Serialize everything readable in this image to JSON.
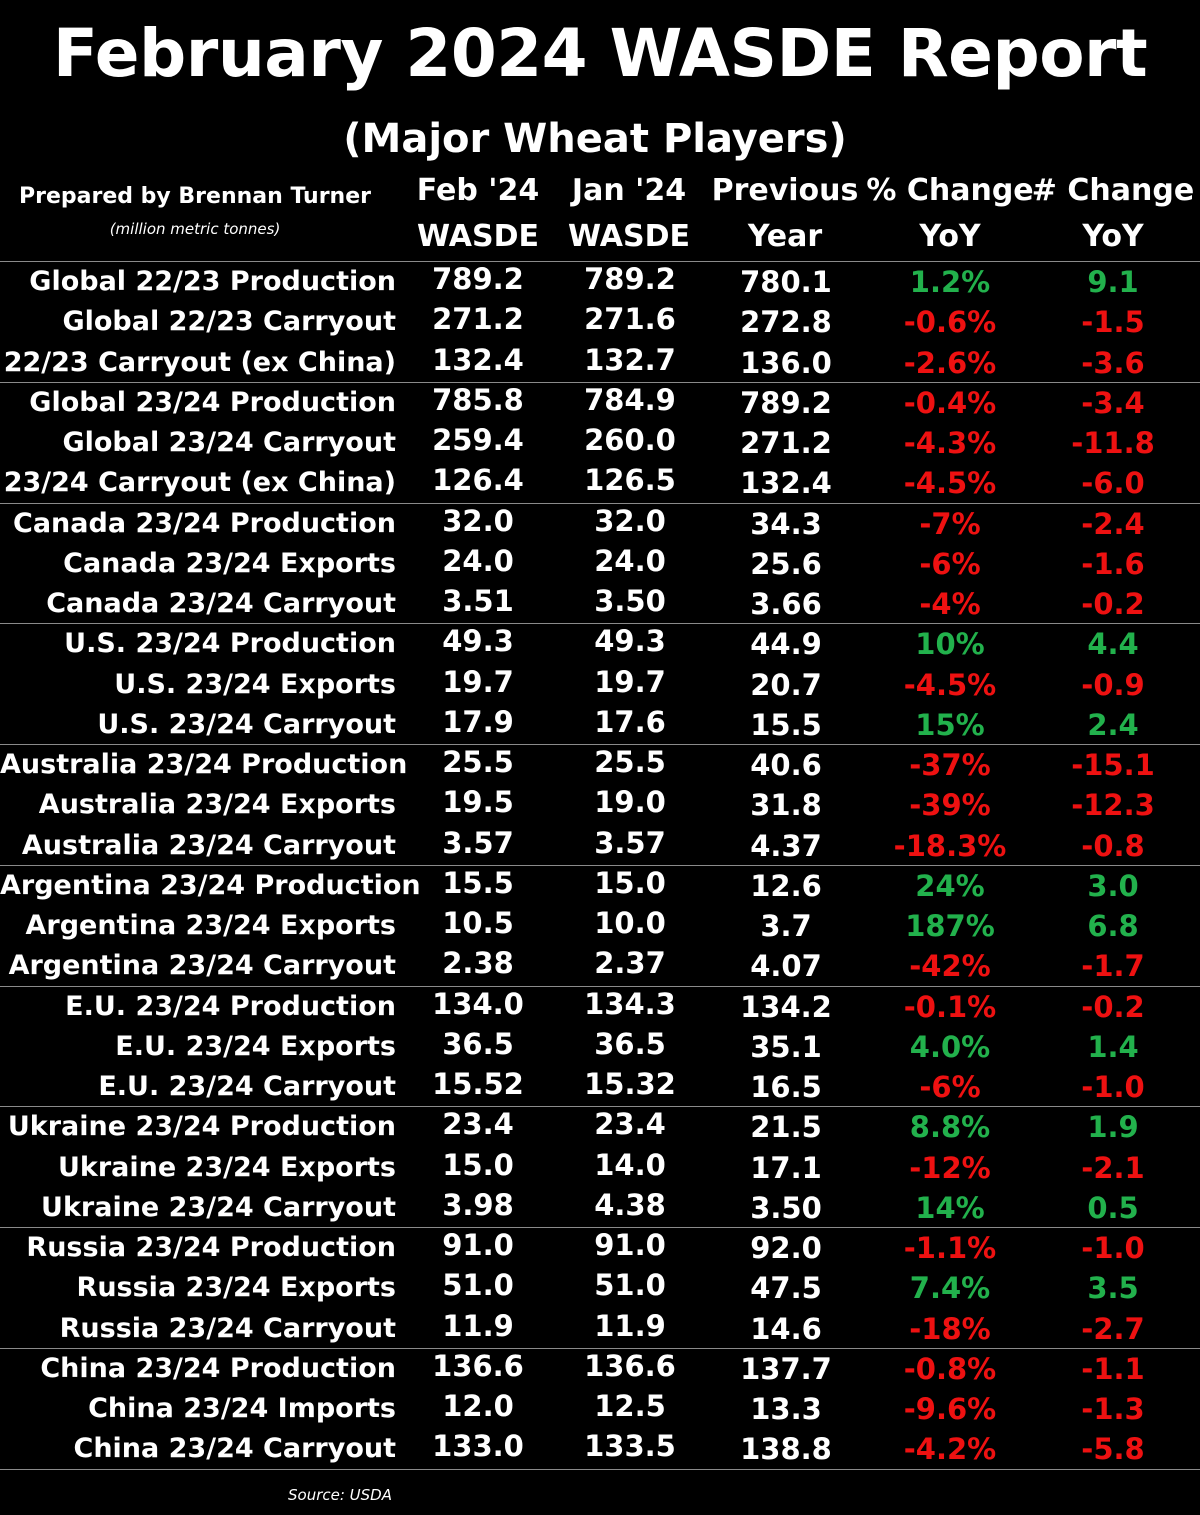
{
  "chart_data": {
    "type": "table",
    "title": "February 2024 WASDE Report",
    "subtitle": "(Major Wheat Players)",
    "prepared_by": "Prepared by Brennan Turner",
    "units": "(million metric tonnes)",
    "source": "Source: USDA",
    "columns": [
      {
        "line1": "Feb '24",
        "line2": "WASDE"
      },
      {
        "line1": "Jan '24",
        "line2": "WASDE"
      },
      {
        "line1": "Previous",
        "line2": "Year"
      },
      {
        "line1": "% Change",
        "line2": "YoY"
      },
      {
        "line1": "# Change",
        "line2": "YoY"
      }
    ],
    "colors": {
      "positive": "#22b14c",
      "negative": "#ee1111",
      "background": "#000000",
      "text": "#ffffff"
    },
    "rows": [
      {
        "label": "Global 22/23 Production",
        "feb": "789.2",
        "jan": "789.2",
        "prev": "780.1",
        "pct": "1.2%",
        "num": "9.1",
        "dir": "pos"
      },
      {
        "label": "Global 22/23 Carryout",
        "feb": "271.2",
        "jan": "271.6",
        "prev": "272.8",
        "pct": "-0.6%",
        "num": "-1.5",
        "dir": "neg"
      },
      {
        "label": "22/23 Carryout (ex China)",
        "feb": "132.4",
        "jan": "132.7",
        "prev": "136.0",
        "pct": "-2.6%",
        "num": "-3.6",
        "dir": "neg"
      },
      {
        "label": "Global 23/24 Production",
        "feb": "785.8",
        "jan": "784.9",
        "prev": "789.2",
        "pct": "-0.4%",
        "num": "-3.4",
        "dir": "neg"
      },
      {
        "label": "Global 23/24 Carryout",
        "feb": "259.4",
        "jan": "260.0",
        "prev": "271.2",
        "pct": "-4.3%",
        "num": "-11.8",
        "dir": "neg"
      },
      {
        "label": "23/24 Carryout (ex China)",
        "feb": "126.4",
        "jan": "126.5",
        "prev": "132.4",
        "pct": "-4.5%",
        "num": "-6.0",
        "dir": "neg"
      },
      {
        "label": "Canada 23/24 Production",
        "feb": "32.0",
        "jan": "32.0",
        "prev": "34.3",
        "pct": "-7%",
        "num": "-2.4",
        "dir": "neg"
      },
      {
        "label": "Canada 23/24 Exports",
        "feb": "24.0",
        "jan": "24.0",
        "prev": "25.6",
        "pct": "-6%",
        "num": "-1.6",
        "dir": "neg"
      },
      {
        "label": "Canada 23/24 Carryout",
        "feb": "3.51",
        "jan": "3.50",
        "prev": "3.66",
        "pct": "-4%",
        "num": "-0.2",
        "dir": "neg"
      },
      {
        "label": "U.S. 23/24 Production",
        "feb": "49.3",
        "jan": "49.3",
        "prev": "44.9",
        "pct": "10%",
        "num": "4.4",
        "dir": "pos"
      },
      {
        "label": "U.S. 23/24 Exports",
        "feb": "19.7",
        "jan": "19.7",
        "prev": "20.7",
        "pct": "-4.5%",
        "num": "-0.9",
        "dir": "neg"
      },
      {
        "label": "U.S. 23/24 Carryout",
        "feb": "17.9",
        "jan": "17.6",
        "prev": "15.5",
        "pct": "15%",
        "num": "2.4",
        "dir": "pos"
      },
      {
        "label": "Australia 23/24 Production",
        "feb": "25.5",
        "jan": "25.5",
        "prev": "40.6",
        "pct": "-37%",
        "num": "-15.1",
        "dir": "neg"
      },
      {
        "label": "Australia 23/24 Exports",
        "feb": "19.5",
        "jan": "19.0",
        "prev": "31.8",
        "pct": "-39%",
        "num": "-12.3",
        "dir": "neg"
      },
      {
        "label": "Australia 23/24 Carryout",
        "feb": "3.57",
        "jan": "3.57",
        "prev": "4.37",
        "pct": "-18.3%",
        "num": "-0.8",
        "dir": "neg"
      },
      {
        "label": "Argentina 23/24 Production",
        "feb": "15.5",
        "jan": "15.0",
        "prev": "12.6",
        "pct": "24%",
        "num": "3.0",
        "dir": "pos"
      },
      {
        "label": "Argentina 23/24 Exports",
        "feb": "10.5",
        "jan": "10.0",
        "prev": "3.7",
        "pct": "187%",
        "num": "6.8",
        "dir": "pos"
      },
      {
        "label": "Argentina 23/24 Carryout",
        "feb": "2.38",
        "jan": "2.37",
        "prev": "4.07",
        "pct": "-42%",
        "num": "-1.7",
        "dir": "neg"
      },
      {
        "label": "E.U. 23/24 Production",
        "feb": "134.0",
        "jan": "134.3",
        "prev": "134.2",
        "pct": "-0.1%",
        "num": "-0.2",
        "dir": "neg"
      },
      {
        "label": "E.U. 23/24 Exports",
        "feb": "36.5",
        "jan": "36.5",
        "prev": "35.1",
        "pct": "4.0%",
        "num": "1.4",
        "dir": "pos"
      },
      {
        "label": "E.U. 23/24 Carryout",
        "feb": "15.52",
        "jan": "15.32",
        "prev": "16.5",
        "pct": "-6%",
        "num": "-1.0",
        "dir": "neg"
      },
      {
        "label": "Ukraine 23/24 Production",
        "feb": "23.4",
        "jan": "23.4",
        "prev": "21.5",
        "pct": "8.8%",
        "num": "1.9",
        "dir": "pos"
      },
      {
        "label": "Ukraine 23/24 Exports",
        "feb": "15.0",
        "jan": "14.0",
        "prev": "17.1",
        "pct": "-12%",
        "num": "-2.1",
        "dir": "neg"
      },
      {
        "label": "Ukraine 23/24 Carryout",
        "feb": "3.98",
        "jan": "4.38",
        "prev": "3.50",
        "pct": "14%",
        "num": "0.5",
        "dir": "pos"
      },
      {
        "label": "Russia 23/24 Production",
        "feb": "91.0",
        "jan": "91.0",
        "prev": "92.0",
        "pct": "-1.1%",
        "num": "-1.0",
        "dir": "neg"
      },
      {
        "label": "Russia 23/24 Exports",
        "feb": "51.0",
        "jan": "51.0",
        "prev": "47.5",
        "pct": "7.4%",
        "num": "3.5",
        "dir": "pos"
      },
      {
        "label": "Russia 23/24 Carryout",
        "feb": "11.9",
        "jan": "11.9",
        "prev": "14.6",
        "pct": "-18%",
        "num": "-2.7",
        "dir": "neg"
      },
      {
        "label": "China 23/24 Production",
        "feb": "136.6",
        "jan": "136.6",
        "prev": "137.7",
        "pct": "-0.8%",
        "num": "-1.1",
        "dir": "neg"
      },
      {
        "label": "China 23/24 Imports",
        "feb": "12.0",
        "jan": "12.5",
        "prev": "13.3",
        "pct": "-9.6%",
        "num": "-1.3",
        "dir": "neg"
      },
      {
        "label": "China 23/24 Carryout",
        "feb": "133.0",
        "jan": "133.5",
        "prev": "138.8",
        "pct": "-4.2%",
        "num": "-5.8",
        "dir": "neg"
      }
    ]
  }
}
